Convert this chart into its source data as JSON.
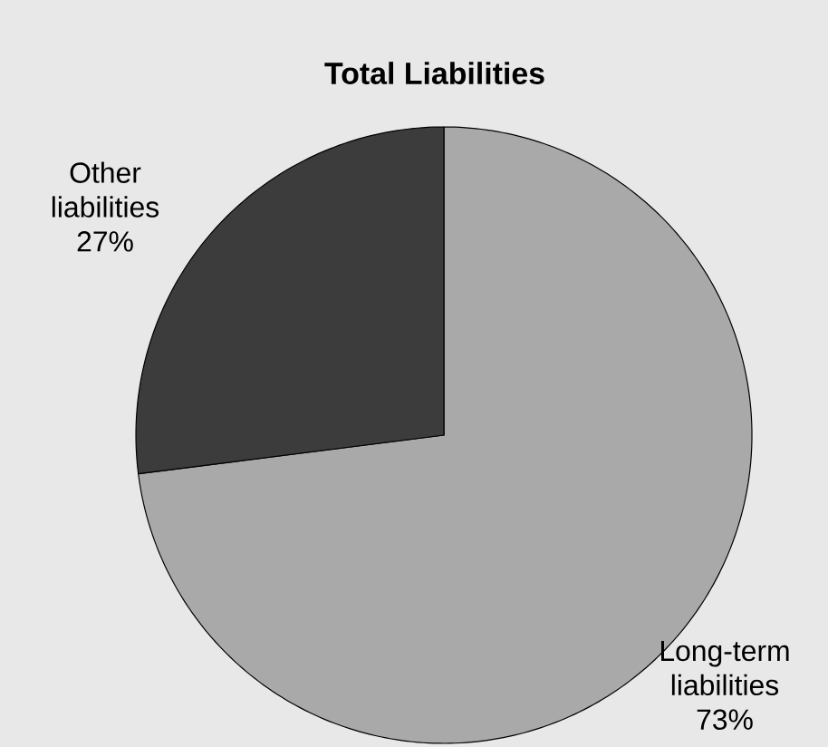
{
  "chart_data": {
    "type": "pie",
    "title": "Total Liabilities",
    "categories": [
      "Long-term liabilities",
      "Other liabilities"
    ],
    "values": [
      73,
      27
    ],
    "value_labels": [
      "73%",
      "27%"
    ],
    "colors": [
      "#a9a9a9",
      "#3c3c3c"
    ],
    "legend": false
  }
}
